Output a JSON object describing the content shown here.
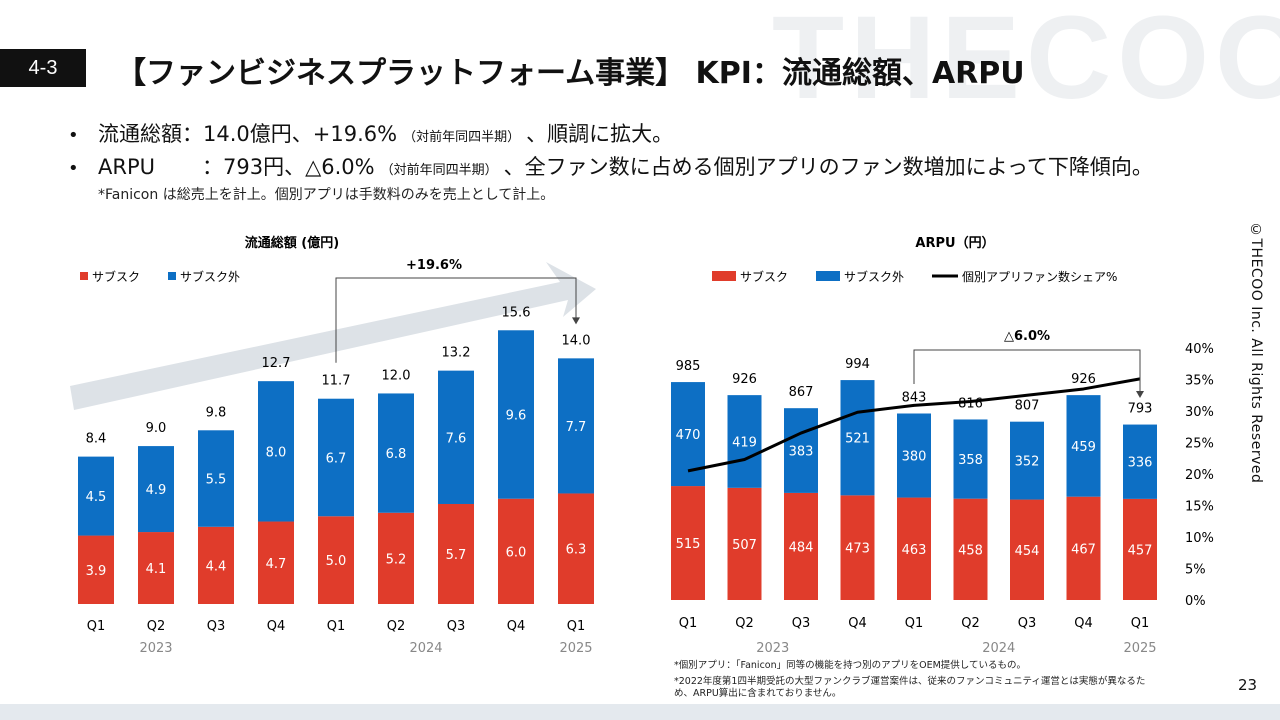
{
  "watermark": "THECOO",
  "section_number": "4-3",
  "title": "【ファンビジネスプラットフォーム事業】 KPI：流通総額、ARPU",
  "bullets": [
    {
      "label": "流通総額",
      "value": "：14.0億円、+19.6%",
      "note": "（対前年同四半期）",
      "tail": "、順調に拡大。"
    },
    {
      "label": "ARPU",
      "value": "：793円、△6.0%",
      "note": "（対前年同四半期）",
      "tail": "、全ファン数に占める個別アプリのファン数増加によって下降傾向。"
    }
  ],
  "note": "*Fanicon は総売上を計上。個別アプリは手数料のみを売上として計上。",
  "copyright": "©THECOO Inc. All Rights Reserved",
  "footnotes": [
    "*個別アプリ：「Fanicon」同等の機能を持つ別のアプリをOEM提供しているもの。",
    "*2022年度第1四半期受託の大型ファンクラブ運営案件は、従来のファンコミュニティ運営とは実態が異なるた",
    "め、ARPU算出に含まれておりません。"
  ],
  "page_number": "23",
  "colors": {
    "red": "#e03c2b",
    "blue": "#0d6fc4",
    "arrow": "#dde2e7",
    "line": "#000000"
  },
  "chart_data": [
    {
      "type": "bar",
      "stacked": true,
      "title": "流通総額 (億円)",
      "categories": [
        "Q1",
        "Q2",
        "Q3",
        "Q4",
        "Q1",
        "Q2",
        "Q3",
        "Q4",
        "Q1"
      ],
      "year_labels": [
        {
          "label": "2023",
          "index": 1
        },
        {
          "label": "2024",
          "index": 5.5
        },
        {
          "label": "2025",
          "index": 8
        }
      ],
      "series": [
        {
          "name": "サブスク",
          "color": "#e03c2b",
          "values": [
            3.9,
            4.1,
            4.4,
            4.7,
            5.0,
            5.2,
            5.7,
            6.0,
            6.3
          ]
        },
        {
          "name": "サブスク外",
          "color": "#0d6fc4",
          "values": [
            4.5,
            4.9,
            5.5,
            8.0,
            6.7,
            6.8,
            7.6,
            9.6,
            7.7
          ]
        }
      ],
      "totals": [
        8.4,
        9.0,
        9.8,
        12.7,
        11.7,
        12.0,
        13.2,
        15.6,
        14.0
      ],
      "display": {
        "series": [
          [
            "3.9",
            "4.1",
            "4.4",
            "4.7",
            "5.0",
            "5.2",
            "5.7",
            "6.0",
            "6.3"
          ],
          [
            "4.5",
            "4.9",
            "5.5",
            "8.0",
            "6.7",
            "6.8",
            "7.6",
            "9.6",
            "7.7"
          ]
        ],
        "totals": [
          "8.4",
          "9.0",
          "9.8",
          "12.7",
          "11.7",
          "12.0",
          "13.2",
          "15.6",
          "14.0"
        ]
      },
      "ylim": [
        0,
        16.3
      ],
      "annotation": {
        "label": "+19.6%",
        "from_index": 4,
        "to_index": 8
      }
    },
    {
      "type": "bar",
      "stacked": true,
      "title": "ARPU（円）",
      "categories": [
        "Q1",
        "Q2",
        "Q3",
        "Q4",
        "Q1",
        "Q2",
        "Q3",
        "Q4",
        "Q1"
      ],
      "year_labels": [
        {
          "label": "2023",
          "index": 1.5
        },
        {
          "label": "2024",
          "index": 5.5
        },
        {
          "label": "2025",
          "index": 8
        }
      ],
      "series": [
        {
          "name": "サブスク",
          "color": "#e03c2b",
          "values": [
            515,
            507,
            484,
            473,
            463,
            458,
            454,
            467,
            457
          ]
        },
        {
          "name": "サブスク外",
          "color": "#0d6fc4",
          "values": [
            470,
            419,
            383,
            521,
            380,
            358,
            352,
            459,
            336
          ]
        }
      ],
      "totals": [
        985,
        926,
        867,
        994,
        843,
        816,
        807,
        926,
        793
      ],
      "ylim": [
        0,
        1130
      ],
      "line_series": {
        "name": "個別アプリファン数シェア%",
        "axis": "right",
        "values": [
          20.5,
          22.3,
          26.5,
          29.8,
          30.9,
          31.5,
          32.5,
          33.5,
          35.1
        ]
      },
      "right_axis": {
        "ylim": [
          0,
          40
        ],
        "ticks": [
          "0%",
          "5%",
          "10%",
          "15%",
          "20%",
          "25%",
          "30%",
          "35%",
          "40%"
        ]
      },
      "annotation": {
        "label": "△6.0%",
        "from_index": 4,
        "to_index": 8
      }
    }
  ]
}
